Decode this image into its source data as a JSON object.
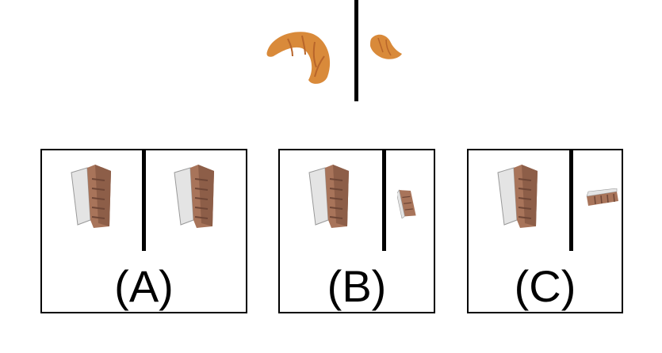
{
  "reference": {
    "left_object_icon": "croissant-icon",
    "right_object_icon": "croissant-icon"
  },
  "options": [
    {
      "label": "(A)",
      "left_object_icon": "bookcase-icon",
      "right_object_icon": "bookcase-icon"
    },
    {
      "label": "(B)",
      "left_object_icon": "bookcase-icon",
      "right_object_icon": "bookcase-icon"
    },
    {
      "label": "(C)",
      "left_object_icon": "bookcase-icon",
      "right_object_icon": "bookcase-icon"
    }
  ],
  "colors": {
    "croissant": "#d98a3a",
    "croissant_dark": "#b8652a",
    "cabinet_wood": "#a8745a",
    "cabinet_door": "#e4e4e4",
    "border": "#000000"
  }
}
